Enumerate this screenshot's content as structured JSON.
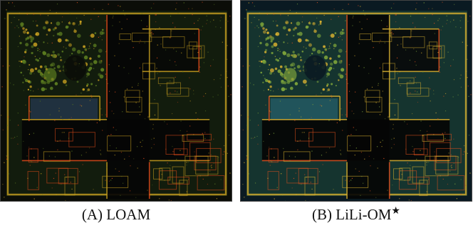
{
  "figure": {
    "panels": [
      {
        "id": "A",
        "caption_prefix": "(A)",
        "caption_name": "LOAM",
        "caption_mark": "",
        "palette": {
          "background": "#0b0d08",
          "ground": "#1a2a12",
          "edge": "#c8a020",
          "edge_hot": "#e04a1a",
          "vegetation": "#5a7a20",
          "accent": "#2a4060"
        }
      },
      {
        "id": "B",
        "caption_prefix": "(B)",
        "caption_name": "LiLi-OM",
        "caption_mark": "★",
        "palette": {
          "background": "#0a1a22",
          "ground": "#1f4a3a",
          "edge": "#d8b030",
          "edge_hot": "#e0501e",
          "vegetation": "#7aa03a",
          "accent": "#2a6a7a"
        }
      }
    ]
  }
}
